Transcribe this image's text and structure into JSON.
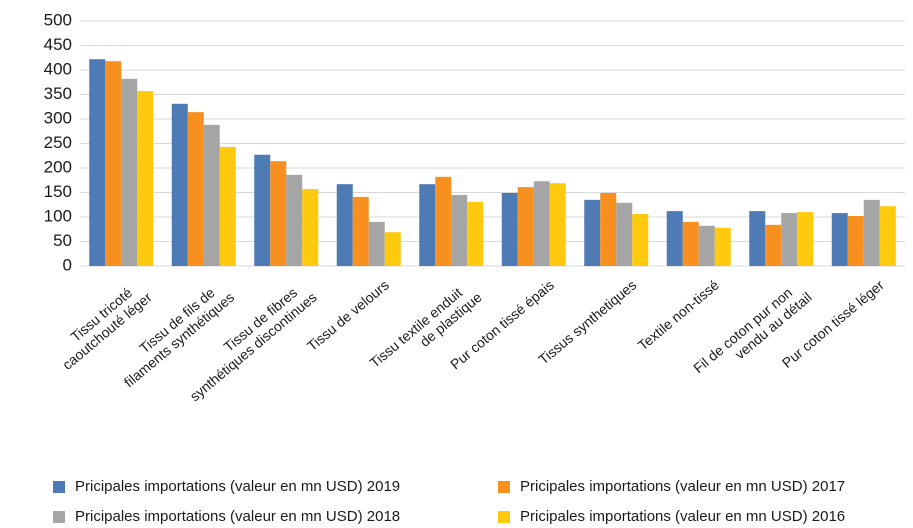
{
  "chart_data": {
    "type": "bar",
    "categories": [
      "Tissu tricoté\ncaoutchouté léger",
      "Tissu de fils de\nfilaments synthétiques",
      "Tissu de fibres\nsynthétiques discontinues",
      "Tissu de velours",
      "Tissu  textile enduit\nde plastique",
      "Pur  coton tissé épais",
      "Tissus synthetiques",
      "Textile non-tissé",
      "Fil de coton pur non\nvendu au détail",
      "Pur coton tissé léger"
    ],
    "series": [
      {
        "name": "Pricipales importations (valeur en mn USD) 2019",
        "color": "#4e7ab5",
        "values": [
          422,
          331,
          227,
          167,
          167,
          149,
          135,
          112,
          112,
          108
        ]
      },
      {
        "name": "Pricipales importations (valeur en mn USD) 2017",
        "color": "#f7901e",
        "values": [
          418,
          314,
          214,
          141,
          182,
          161,
          149,
          90,
          84,
          102
        ]
      },
      {
        "name": "Pricipales importations (valeur en mn USD) 2018",
        "color": "#a5a5a5",
        "values": [
          382,
          288,
          186,
          90,
          145,
          173,
          129,
          82,
          108,
          135
        ]
      },
      {
        "name": "Pricipales importations (valeur en mn USD) 2016",
        "color": "#ffc90e",
        "values": [
          357,
          243,
          157,
          69,
          131,
          169,
          106,
          78,
          110,
          122
        ]
      }
    ],
    "ylim": [
      0,
      500
    ],
    "yticks": [
      0,
      50,
      100,
      150,
      200,
      250,
      300,
      350,
      400,
      450,
      500
    ],
    "grid": true
  }
}
